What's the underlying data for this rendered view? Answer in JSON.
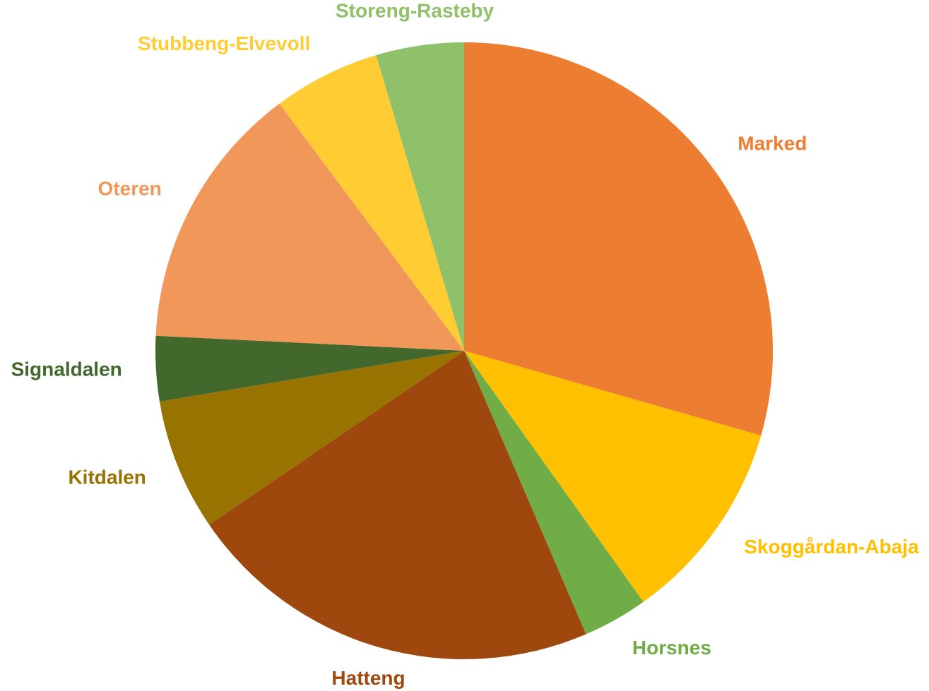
{
  "chart_data": {
    "type": "pie",
    "categories": [
      "Marked",
      "Skoggårdan-Abaja",
      "Horsnes",
      "Hatteng",
      "Kitdalen",
      "Signaldalen",
      "Oteren",
      "Stubbeng-Elvevoll",
      "Storeng-Rasteby"
    ],
    "values": [
      29.4,
      10.7,
      3.4,
      21.9,
      6.9,
      3.4,
      14.0,
      5.6,
      4.6
    ],
    "colors": [
      "#ED7D31",
      "#FFC000",
      "#70AD47",
      "#9E480E",
      "#997300",
      "#43682B",
      "#F1975A",
      "#FFCD33",
      "#8FC16A"
    ]
  }
}
